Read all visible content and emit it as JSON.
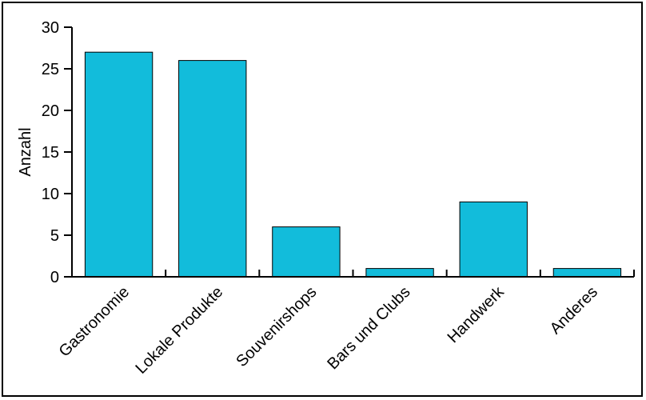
{
  "chart_data": {
    "type": "bar",
    "categories": [
      "Gastronomie",
      "Lokale Produkte",
      "Souvenirshops",
      "Bars und Clubs",
      "Handwerk",
      "Anderes"
    ],
    "values": [
      27,
      26,
      6,
      1,
      9,
      1
    ],
    "title": "",
    "xlabel": "",
    "ylabel": "Anzahl",
    "ylim": [
      0,
      30
    ],
    "yticks": [
      0,
      5,
      10,
      15,
      20,
      25,
      30
    ],
    "grid": false,
    "bar_color": "#12bcdb"
  }
}
